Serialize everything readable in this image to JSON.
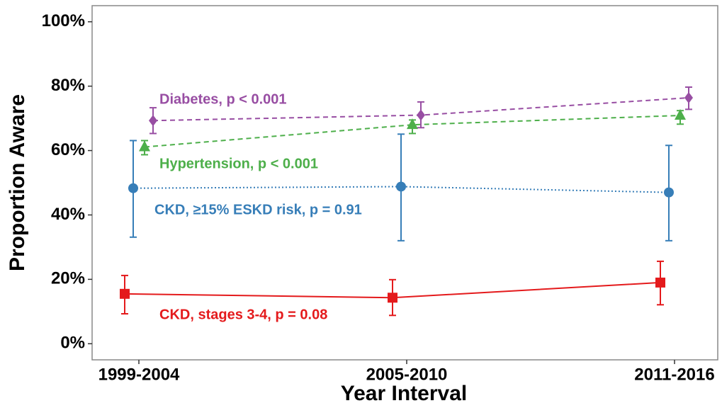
{
  "chart_data": {
    "type": "line",
    "x_label": "Year Interval",
    "y_label": "Proportion Aware",
    "categories": [
      "1999-2004",
      "2005-2010",
      "2011-2016"
    ],
    "ylim": [
      -5,
      105
    ],
    "yticks": [
      {
        "value": 0,
        "label": "0%"
      },
      {
        "value": 20,
        "label": "20%"
      },
      {
        "value": 40,
        "label": "40%"
      },
      {
        "value": 60,
        "label": "60%"
      },
      {
        "value": 80,
        "label": "80%"
      },
      {
        "value": 100,
        "label": "100%"
      }
    ],
    "grid": false,
    "series": [
      {
        "name": "CKD, stages 3-4, p = 0.08",
        "color": "#e41a1c",
        "marker": "square",
        "line_style": "solid",
        "values": [
          15.5,
          14.3,
          19.0
        ],
        "lower": [
          9.3,
          8.8,
          12.1
        ],
        "upper": [
          21.2,
          19.9,
          25.6
        ]
      },
      {
        "name": "CKD, ≥15% ESKD risk, p = 0.91",
        "color": "#377eb8",
        "marker": "circle",
        "line_style": "dotted",
        "values": [
          48.3,
          48.8,
          47.0
        ],
        "lower": [
          33.1,
          32.0,
          32.0
        ],
        "upper": [
          63.1,
          65.1,
          61.6
        ]
      },
      {
        "name": "Hypertension, p < 0.001",
        "color": "#4daf4a",
        "marker": "triangle",
        "line_style": "dashed",
        "values": [
          61.1,
          68.0,
          70.9
        ],
        "lower": [
          58.7,
          65.3,
          68.2
        ],
        "upper": [
          63.1,
          69.5,
          72.4
        ]
      },
      {
        "name": "Diabetes, p < 0.001",
        "color": "#984ea3",
        "marker": "diamond",
        "line_style": "dashed",
        "values": [
          69.3,
          71.0,
          76.4
        ],
        "lower": [
          65.3,
          67.1,
          72.8
        ],
        "upper": [
          73.3,
          75.1,
          79.7
        ]
      }
    ]
  }
}
